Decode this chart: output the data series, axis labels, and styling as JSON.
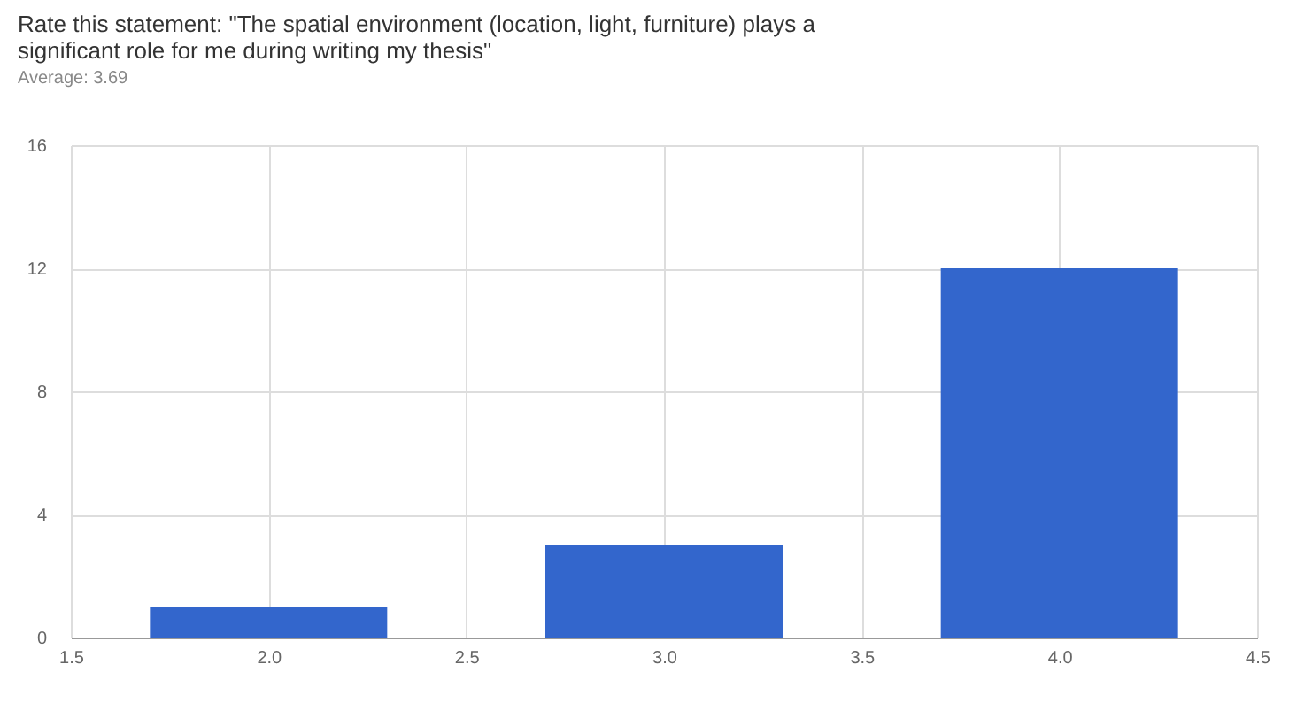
{
  "chart_data": {
    "type": "bar",
    "title": [
      "Rate this statement: \"The spatial environment (location, light, furniture) plays a",
      "significant role for me during writing my thesis\""
    ],
    "subtitle": "Average: 3.69",
    "x": [
      2,
      3,
      4
    ],
    "values": [
      1,
      3,
      12
    ],
    "color": "#3366cc",
    "xlim": [
      1.5,
      4.5
    ],
    "xticks": [
      {
        "value": 1.5,
        "label": "1.5"
      },
      {
        "value": 2,
        "label": "2.0"
      },
      {
        "value": 2.5,
        "label": "2.5"
      },
      {
        "value": 3,
        "label": "3.0"
      },
      {
        "value": 3.5,
        "label": "3.5"
      },
      {
        "value": 4,
        "label": "4.0"
      },
      {
        "value": 4.5,
        "label": "4.5"
      }
    ],
    "ylim": [
      0,
      16
    ],
    "yticks": [
      0,
      4,
      8,
      12,
      16
    ],
    "grid": true
  }
}
